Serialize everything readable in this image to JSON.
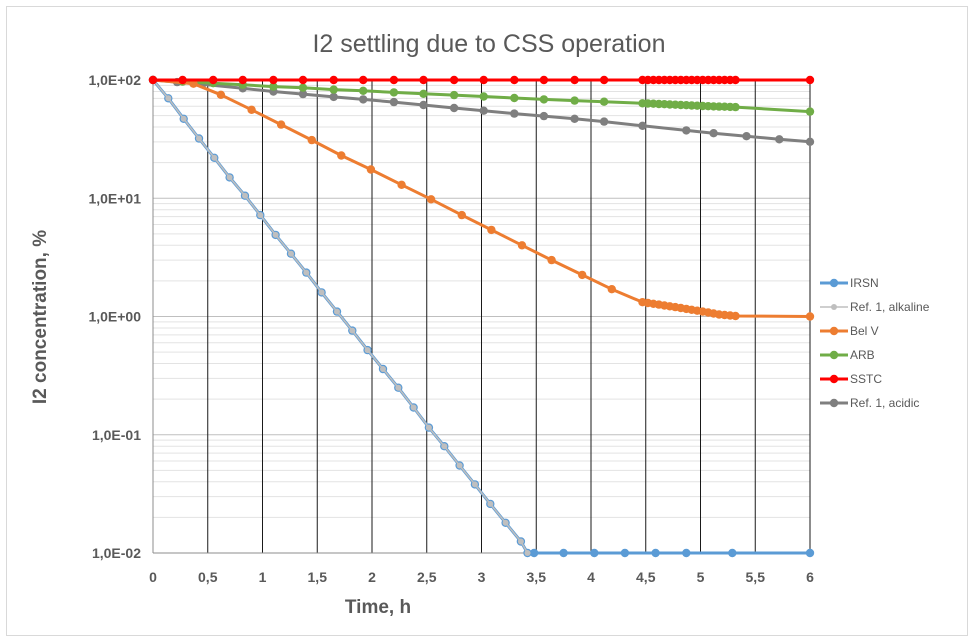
{
  "chart_data": {
    "type": "line",
    "title": "I2 settling due to CSS operation",
    "xlabel": "Time, h",
    "ylabel": "I2 concentration, %",
    "xlim": [
      0,
      6
    ],
    "ylim": [
      0.01,
      100
    ],
    "yscale": "log",
    "grid": true,
    "legend": "right",
    "x_ticks": [
      "0",
      "0,5",
      "1",
      "1,5",
      "2",
      "2,5",
      "3",
      "3,5",
      "4",
      "4,5",
      "5",
      "5,5",
      "6"
    ],
    "y_ticks": [
      "1,0E-02",
      "1,0E-01",
      "1,0E+00",
      "1,0E+01",
      "1,0E+02"
    ],
    "series": [
      {
        "name": "IRSN",
        "color": "#5b9bd5",
        "x": [
          0,
          0.14,
          0.28,
          0.42,
          0.56,
          0.7,
          0.84,
          0.98,
          1.12,
          1.26,
          1.4,
          1.54,
          1.68,
          1.82,
          1.96,
          2.1,
          2.24,
          2.38,
          2.52,
          2.66,
          2.8,
          2.94,
          3.08,
          3.22,
          3.36,
          3.42,
          3.48,
          3.75,
          4.03,
          4.31,
          4.59,
          4.87,
          5.29,
          6.0
        ],
        "y": [
          100,
          70,
          47,
          32,
          22,
          15,
          10.5,
          7.2,
          4.9,
          3.4,
          2.35,
          1.6,
          1.1,
          0.76,
          0.52,
          0.36,
          0.25,
          0.17,
          0.115,
          0.08,
          0.055,
          0.038,
          0.026,
          0.018,
          0.0125,
          0.01,
          0.01,
          0.01,
          0.01,
          0.01,
          0.01,
          0.01,
          0.01,
          0.01
        ]
      },
      {
        "name": "Ref. 1, alkaline",
        "color": "#bfbfbf",
        "x": [
          0,
          0.14,
          0.28,
          0.42,
          0.56,
          0.7,
          0.84,
          0.98,
          1.12,
          1.26,
          1.4,
          1.54,
          1.68,
          1.82,
          1.96,
          2.1,
          2.24,
          2.38,
          2.52,
          2.66,
          2.8,
          2.94,
          3.08,
          3.22,
          3.36,
          3.42
        ],
        "y": [
          100,
          70,
          47,
          32,
          22,
          15,
          10.5,
          7.2,
          4.9,
          3.4,
          2.35,
          1.6,
          1.1,
          0.76,
          0.52,
          0.36,
          0.25,
          0.17,
          0.115,
          0.08,
          0.055,
          0.038,
          0.026,
          0.018,
          0.0125,
          0.01
        ]
      },
      {
        "name": "Bel V",
        "color": "#ed7d31",
        "x": [
          0,
          0.37,
          0.62,
          0.9,
          1.17,
          1.45,
          1.72,
          1.99,
          2.27,
          2.54,
          2.82,
          3.09,
          3.37,
          3.64,
          3.92,
          4.19,
          4.47,
          4.52,
          4.57,
          4.62,
          4.67,
          4.72,
          4.77,
          4.82,
          4.87,
          4.92,
          4.97,
          5.02,
          5.07,
          5.12,
          5.17,
          5.22,
          5.27,
          5.32,
          6.0
        ],
        "y": [
          100,
          93,
          75,
          56,
          42,
          31,
          23,
          17.5,
          13,
          9.8,
          7.2,
          5.4,
          4,
          3,
          2.25,
          1.7,
          1.32,
          1.3,
          1.28,
          1.26,
          1.24,
          1.22,
          1.2,
          1.18,
          1.16,
          1.14,
          1.12,
          1.1,
          1.08,
          1.06,
          1.04,
          1.03,
          1.02,
          1.01,
          1.0
        ]
      },
      {
        "name": "ARB",
        "color": "#70ad47",
        "x": [
          0,
          0.27,
          0.55,
          0.82,
          1.1,
          1.37,
          1.65,
          1.92,
          2.2,
          2.47,
          2.75,
          3.02,
          3.3,
          3.57,
          3.85,
          4.12,
          4.47,
          4.52,
          4.57,
          4.62,
          4.67,
          4.72,
          4.77,
          4.82,
          4.87,
          4.92,
          4.97,
          5.02,
          5.07,
          5.12,
          5.17,
          5.22,
          5.27,
          5.32,
          6.0
        ],
        "y": [
          100,
          97,
          94,
          91,
          88,
          86,
          83,
          81,
          78.5,
          76.5,
          74.5,
          72.5,
          70.5,
          68.5,
          67,
          65.5,
          63.5,
          63.3,
          63,
          62.7,
          62.4,
          62.1,
          61.8,
          61.5,
          61.2,
          60.9,
          60.6,
          60.3,
          60,
          59.8,
          59.6,
          59.4,
          59.2,
          59,
          54
        ]
      },
      {
        "name": "SSTC",
        "color": "#ff0000",
        "x": [
          0,
          0.27,
          0.55,
          0.82,
          1.1,
          1.37,
          1.65,
          1.92,
          2.2,
          2.47,
          2.75,
          3.02,
          3.3,
          3.57,
          3.85,
          4.12,
          4.47,
          4.52,
          4.57,
          4.62,
          4.67,
          4.72,
          4.77,
          4.82,
          4.87,
          4.92,
          4.97,
          5.02,
          5.07,
          5.12,
          5.17,
          5.22,
          5.27,
          5.32,
          6.0
        ],
        "y": [
          100,
          100,
          100,
          100,
          100,
          100,
          100,
          100,
          100,
          100,
          100,
          100,
          100,
          100,
          100,
          100,
          100,
          100,
          100,
          100,
          100,
          100,
          100,
          100,
          100,
          100,
          100,
          100,
          100,
          100,
          100,
          100,
          100,
          100,
          100
        ]
      },
      {
        "name": "Ref. 1, acidic",
        "color": "#7f7f7f",
        "x": [
          0,
          0.22,
          0.45,
          0.82,
          1.1,
          1.37,
          1.65,
          1.92,
          2.2,
          2.47,
          2.75,
          3.02,
          3.3,
          3.57,
          3.85,
          4.12,
          4.47,
          4.87,
          5.12,
          5.42,
          5.72,
          6.0
        ],
        "y": [
          100,
          96,
          92,
          85,
          80,
          76,
          72,
          68.5,
          65,
          61.5,
          58,
          55,
          52,
          49.5,
          47,
          44.5,
          41,
          37.5,
          35.5,
          33.5,
          31.5,
          30
        ]
      }
    ]
  }
}
